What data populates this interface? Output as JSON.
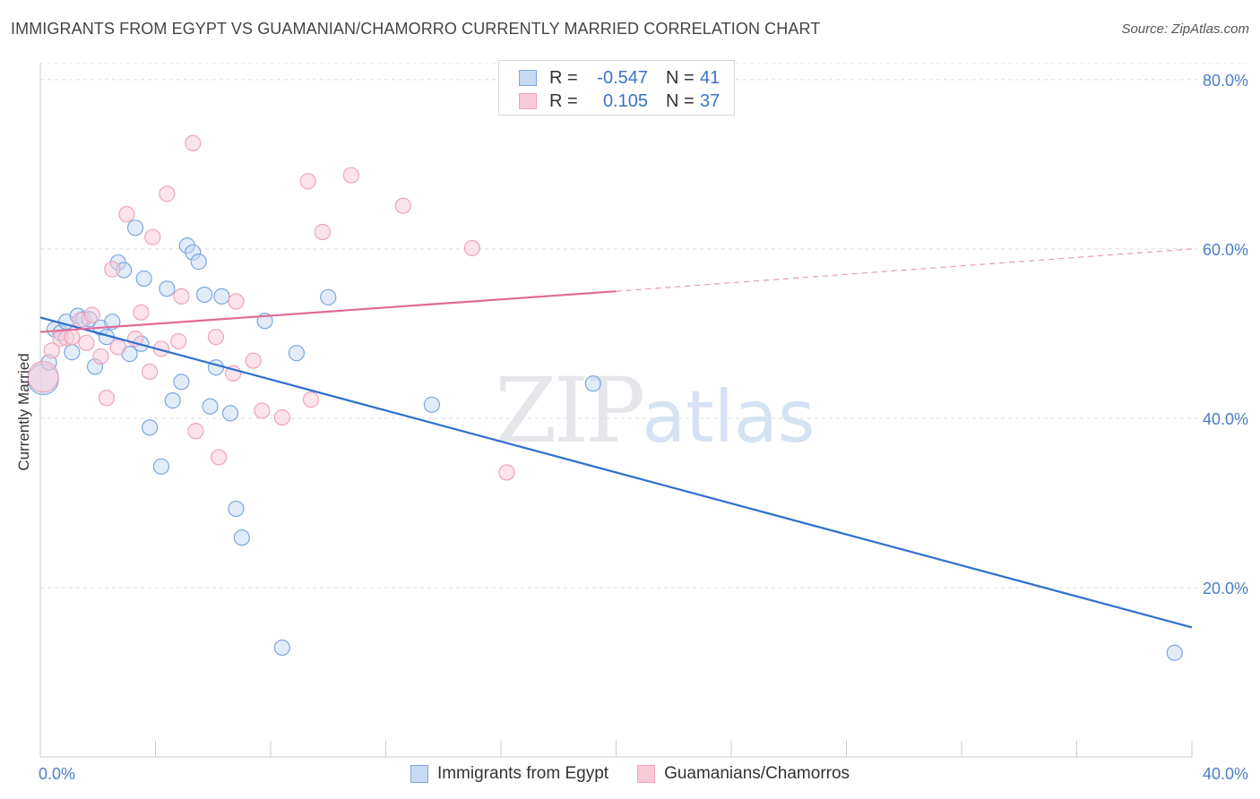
{
  "header": {
    "title": "IMMIGRANTS FROM EGYPT VS GUAMANIAN/CHAMORRO CURRENTLY MARRIED CORRELATION CHART",
    "source": "Source: ZipAtlas.com"
  },
  "watermark": {
    "zip": "ZIP",
    "atlas": "atlas"
  },
  "legend": {
    "rows": [
      {
        "r_label": "R =",
        "r_value": "-0.547",
        "n_label": "N =",
        "n_value": "41"
      },
      {
        "r_label": "R =",
        "r_value": "0.105",
        "n_label": "N =",
        "n_value": "37"
      }
    ]
  },
  "chart_data": {
    "type": "scatter",
    "title": "IMMIGRANTS FROM EGYPT VS GUAMANIAN/CHAMORRO CURRENTLY MARRIED CORRELATION CHART",
    "xlabel": "",
    "ylabel": "Currently Married",
    "xlim": [
      0,
      40
    ],
    "ylim": [
      0,
      82
    ],
    "x_ticks": [
      "0.0%",
      "40.0%"
    ],
    "y_ticks": [
      {
        "value": 80,
        "label": "80.0%"
      },
      {
        "value": 60,
        "label": "60.0%"
      },
      {
        "value": 40,
        "label": "40.0%"
      },
      {
        "value": 20,
        "label": "20.0%"
      }
    ],
    "grid": true,
    "legend_position": "top-center",
    "series": [
      {
        "name": "Immigrants from Egypt",
        "color": "#7aa7e0",
        "fill": "#c6daf3",
        "line_color": "#2f6fce",
        "trend": {
          "x": [
            0,
            40
          ],
          "y": [
            51.9,
            15.3
          ]
        },
        "points": [
          [
            0.1,
            44.6
          ],
          [
            0.3,
            46.6
          ],
          [
            0.5,
            50.5
          ],
          [
            0.7,
            50.1
          ],
          [
            0.9,
            51.4
          ],
          [
            1.1,
            47.8
          ],
          [
            1.3,
            52.1
          ],
          [
            1.5,
            51.7
          ],
          [
            1.7,
            51.7
          ],
          [
            1.9,
            46.1
          ],
          [
            2.1,
            50.7
          ],
          [
            2.3,
            49.6
          ],
          [
            2.5,
            51.4
          ],
          [
            2.7,
            58.4
          ],
          [
            2.9,
            57.5
          ],
          [
            3.1,
            47.6
          ],
          [
            3.3,
            62.5
          ],
          [
            3.5,
            48.8
          ],
          [
            3.6,
            56.5
          ],
          [
            3.8,
            38.9
          ],
          [
            4.2,
            34.3
          ],
          [
            4.4,
            55.3
          ],
          [
            4.6,
            42.1
          ],
          [
            4.9,
            44.3
          ],
          [
            5.1,
            60.4
          ],
          [
            5.3,
            59.6
          ],
          [
            5.5,
            58.5
          ],
          [
            5.7,
            54.6
          ],
          [
            5.9,
            41.4
          ],
          [
            6.1,
            46.0
          ],
          [
            6.3,
            54.4
          ],
          [
            6.6,
            40.6
          ],
          [
            6.8,
            29.3
          ],
          [
            7.0,
            25.9
          ],
          [
            7.8,
            51.5
          ],
          [
            8.4,
            12.9
          ],
          [
            8.9,
            47.7
          ],
          [
            10.0,
            54.3
          ],
          [
            13.6,
            41.6
          ],
          [
            19.2,
            44.1
          ],
          [
            39.4,
            12.3
          ]
        ]
      },
      {
        "name": "Guamanians/Chamorros",
        "color": "#f0a3bb",
        "fill": "#f8cad8",
        "line_color": "#e06b93",
        "trend": {
          "x": [
            0,
            20,
            40
          ],
          "y": [
            50.2,
            55.0,
            60.0
          ]
        },
        "trend_solid_until": 20,
        "points": [
          [
            0.1,
            44.9
          ],
          [
            0.4,
            48.0
          ],
          [
            0.7,
            49.4
          ],
          [
            0.9,
            49.5
          ],
          [
            1.1,
            49.6
          ],
          [
            1.4,
            51.6
          ],
          [
            1.6,
            48.9
          ],
          [
            1.8,
            52.2
          ],
          [
            2.1,
            47.3
          ],
          [
            2.3,
            42.4
          ],
          [
            2.5,
            57.6
          ],
          [
            2.7,
            48.4
          ],
          [
            3.0,
            64.1
          ],
          [
            3.3,
            49.4
          ],
          [
            3.5,
            52.5
          ],
          [
            3.8,
            45.5
          ],
          [
            3.9,
            61.4
          ],
          [
            4.2,
            48.2
          ],
          [
            4.4,
            66.5
          ],
          [
            4.8,
            49.1
          ],
          [
            4.9,
            54.4
          ],
          [
            5.3,
            72.5
          ],
          [
            5.4,
            38.5
          ],
          [
            6.1,
            49.6
          ],
          [
            6.2,
            35.4
          ],
          [
            6.7,
            45.3
          ],
          [
            6.8,
            53.8
          ],
          [
            7.4,
            46.8
          ],
          [
            7.7,
            40.9
          ],
          [
            8.4,
            40.1
          ],
          [
            9.3,
            68.0
          ],
          [
            9.4,
            42.2
          ],
          [
            9.8,
            62.0
          ],
          [
            10.8,
            68.7
          ],
          [
            12.6,
            65.1
          ],
          [
            15.0,
            60.1
          ],
          [
            16.2,
            33.6
          ]
        ]
      }
    ]
  }
}
